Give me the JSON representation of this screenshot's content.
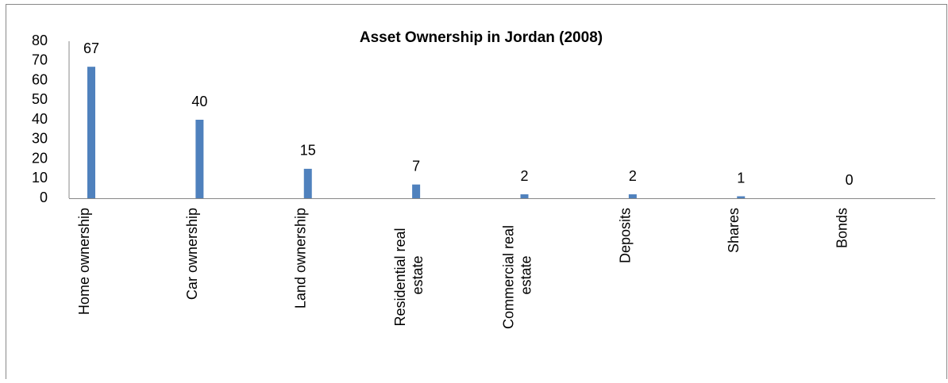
{
  "chart_data": {
    "type": "bar",
    "title": "Asset Ownership in Jordan (2008)",
    "categories": [
      "Home ownership",
      "Car ownership",
      "Land ownership",
      "Residential real estate",
      "Commercial real estate",
      "Deposits",
      "Shares",
      "Bonds"
    ],
    "values": [
      67,
      40,
      15,
      7,
      2,
      2,
      1,
      0
    ],
    "color": "#4f81bd",
    "ylim": [
      0,
      80
    ],
    "yticks": [
      0,
      10,
      20,
      30,
      40,
      50,
      60,
      70,
      80
    ],
    "grid": false
  }
}
